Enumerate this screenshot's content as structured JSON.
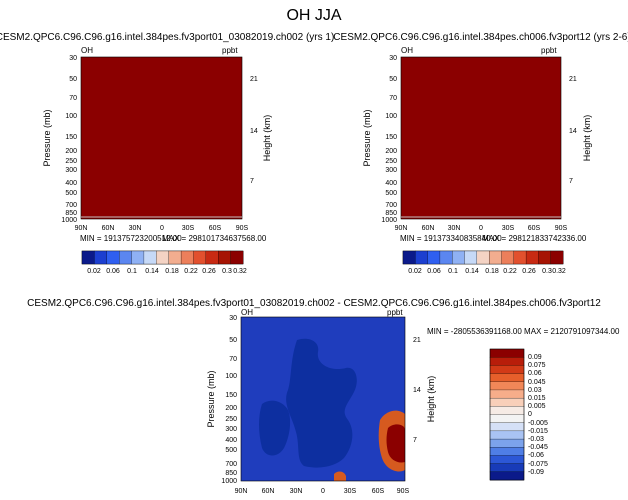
{
  "title": "OH JJA",
  "colors": {
    "dark_red": "#8b0000",
    "panel3_background": "#1f3dbd",
    "panel3_patch": "#0d2fa0",
    "panel3_orange": "#d65a1f"
  },
  "chart_data": [
    {
      "type": "heatmap",
      "panel": "top-left",
      "title": "CESM2.QPC6.C96.C96.g16.intel.384pes.fv3port01_03082019.ch002 (yrs 1)",
      "corner_left": "OH",
      "corner_right": "ppbt",
      "xlabel": "",
      "ylabel": "Pressure (mb)",
      "ylabel_right": "Height (km)",
      "x_ticks": [
        "90N",
        "60N",
        "30N",
        "0",
        "30S",
        "60S",
        "90S"
      ],
      "y_ticks": [
        "30",
        "50",
        "70",
        "100",
        "150",
        "200",
        "250",
        "300",
        "400",
        "500",
        "700",
        "850",
        "1000"
      ],
      "y_right_ticks": [
        "21",
        "14",
        "7"
      ],
      "min_label": "MIN = 191375723200512.00",
      "max_label": "MAX = 298101734637568.00",
      "colorbar_ticks": [
        "0.02",
        "0.06",
        "0.1",
        "0.14",
        "0.18",
        "0.22",
        "0.26",
        "0.3",
        "0.32"
      ],
      "colorbar_colors": [
        "#0b1a8a",
        "#1c3fd0",
        "#2f5ff0",
        "#5b86f0",
        "#8fb1f4",
        "#c6d9f7",
        "#f4d3c4",
        "#f2ad8f",
        "#ec7f5b",
        "#e2502e",
        "#c82a13",
        "#a61404",
        "#8b0000"
      ]
    },
    {
      "type": "heatmap",
      "panel": "top-right",
      "title": "CESM2.QPC6.C96.C96.g16.intel.384pes.ch006.fv3port12 (yrs 2-6)",
      "corner_left": "OH",
      "corner_right": "ppbt",
      "xlabel": "",
      "ylabel": "Pressure (mb)",
      "ylabel_right": "Height (km)",
      "x_ticks": [
        "90N",
        "60N",
        "30N",
        "0",
        "30S",
        "60S",
        "90S"
      ],
      "y_ticks": [
        "30",
        "50",
        "70",
        "100",
        "150",
        "200",
        "250",
        "300",
        "400",
        "500",
        "700",
        "850",
        "1000"
      ],
      "y_right_ticks": [
        "21",
        "14",
        "7"
      ],
      "min_label": "MIN = 191373340835840.00",
      "max_label": "MAX = 298121833742336.00",
      "colorbar_ticks": [
        "0.02",
        "0.06",
        "0.1",
        "0.14",
        "0.18",
        "0.22",
        "0.26",
        "0.3",
        "0.32"
      ],
      "colorbar_colors": [
        "#0b1a8a",
        "#1c3fd0",
        "#2f5ff0",
        "#5b86f0",
        "#8fb1f4",
        "#c6d9f7",
        "#f4d3c4",
        "#f2ad8f",
        "#ec7f5b",
        "#e2502e",
        "#c82a13",
        "#a61404",
        "#8b0000"
      ]
    },
    {
      "type": "heatmap",
      "panel": "bottom",
      "title": "CESM2.QPC6.C96.C96.g16.intel.384pes.fv3port01_03082019.ch002 - CESM2.QPC6.C96.C96.g16.intel.384pes.ch006.fv3port12",
      "corner_left": "OH",
      "corner_right": "ppbt",
      "xlabel": "",
      "ylabel": "Pressure (mb)",
      "ylabel_right": "Height (km)",
      "x_ticks": [
        "90N",
        "60N",
        "30N",
        "0",
        "30S",
        "60S",
        "90S"
      ],
      "y_ticks": [
        "30",
        "50",
        "70",
        "100",
        "150",
        "200",
        "250",
        "300",
        "400",
        "500",
        "700",
        "850",
        "1000"
      ],
      "y_right_ticks": [
        "21",
        "14",
        "7"
      ],
      "minmax_label": "MIN = -280553639116​8.00    MAX = 2120791097344.00",
      "colorbar_ticks": [
        "0.09",
        "0.075",
        "0.06",
        "0.045",
        "0.03",
        "0.015",
        "0.005",
        "0",
        "-0.005",
        "-0.015",
        "-0.03",
        "-0.045",
        "-0.06",
        "-0.075",
        "-0.09"
      ],
      "colorbar_colors": [
        "#8b0000",
        "#b81d0a",
        "#d23a17",
        "#e65f2b",
        "#f18758",
        "#f6ad8a",
        "#f8cfb9",
        "#f6ebe5",
        "#f3f3f3",
        "#d5e0f6",
        "#a9c3f3",
        "#7ca3ec",
        "#4f7ee6",
        "#2c57d6",
        "#183bb8",
        "#0b1a8a"
      ]
    }
  ]
}
